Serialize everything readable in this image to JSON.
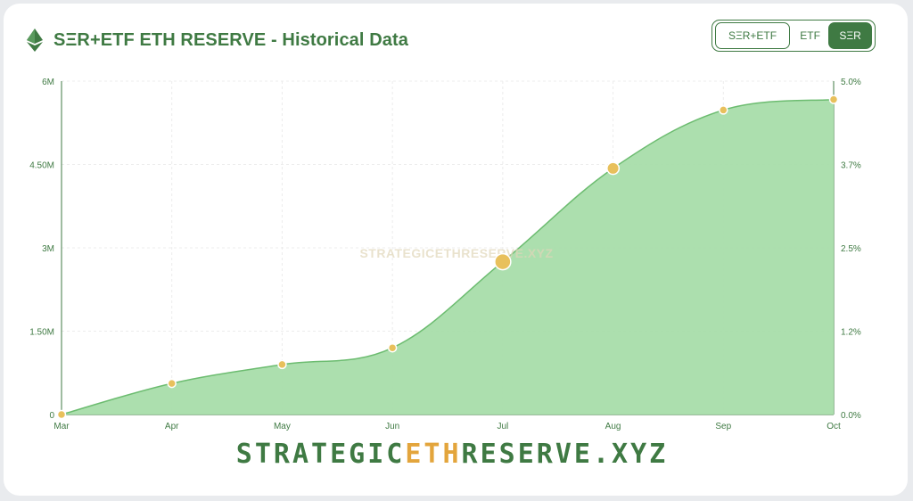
{
  "header": {
    "title": "SΞR+ETF ETH RESERVE - Historical Data",
    "icon": "ethereum-icon"
  },
  "toggle": {
    "options": [
      "SΞR+ETF",
      "ETF",
      "SΞR"
    ],
    "selected": "SΞR"
  },
  "watermark": "STRATEGICETHRESERVE.XYZ",
  "brand": {
    "part1": "STRATEGIC",
    "part2": "ETH",
    "part3": "RESERVE",
    "part4": ".XYZ"
  },
  "colors": {
    "primary": "#3f7a43",
    "area_fill": "#a8ddaa",
    "area_line": "#6cbc70",
    "point": "#e8c05c",
    "accent": "#e3a53c"
  },
  "chart_data": {
    "type": "area",
    "x": [
      "Mar",
      "Apr",
      "May",
      "Jun",
      "Jul",
      "Aug",
      "Sep",
      "Oct"
    ],
    "series": [
      {
        "values": [
          0,
          560000,
          900000,
          1200000,
          2750000,
          4430000,
          5480000,
          5670000
        ]
      }
    ],
    "ylim": [
      0,
      6000000
    ],
    "y_ticks": [
      "0",
      "1.50M",
      "3M",
      "4.50M",
      "6M"
    ],
    "y2_ticks": [
      "0.0%",
      "1.2%",
      "2.5%",
      "3.7%",
      "5.0%"
    ],
    "point_emphasis": [
      1,
      1,
      1,
      1,
      2,
      1.5,
      1,
      1
    ],
    "grid": true
  }
}
